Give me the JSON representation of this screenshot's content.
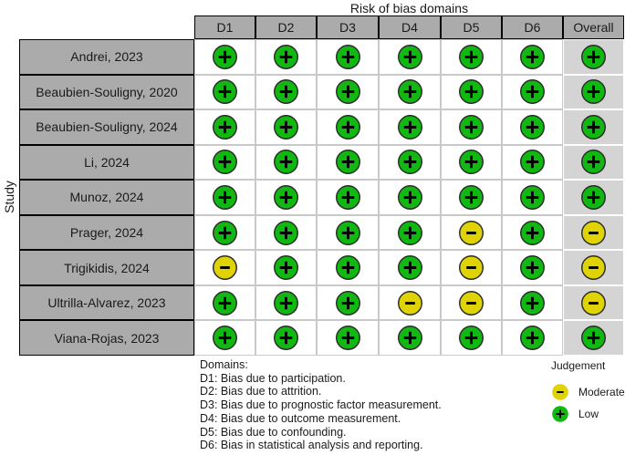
{
  "chart_data": {
    "type": "table",
    "title": "Risk of bias domains",
    "ylabel": "Study",
    "columns": [
      "D1",
      "D2",
      "D3",
      "D4",
      "D5",
      "D6",
      "Overall"
    ],
    "rows": [
      {
        "study": "Andrei, 2023",
        "judgements": [
          "low",
          "low",
          "low",
          "low",
          "low",
          "low",
          "low"
        ]
      },
      {
        "study": "Beaubien-Souligny, 2020",
        "judgements": [
          "low",
          "low",
          "low",
          "low",
          "low",
          "low",
          "low"
        ]
      },
      {
        "study": "Beaubien-Souligny, 2024",
        "judgements": [
          "low",
          "low",
          "low",
          "low",
          "low",
          "low",
          "low"
        ]
      },
      {
        "study": "Li, 2024",
        "judgements": [
          "low",
          "low",
          "low",
          "low",
          "low",
          "low",
          "low"
        ]
      },
      {
        "study": "Munoz, 2024",
        "judgements": [
          "low",
          "low",
          "low",
          "low",
          "low",
          "low",
          "low"
        ]
      },
      {
        "study": "Prager, 2024",
        "judgements": [
          "low",
          "low",
          "low",
          "low",
          "moderate",
          "low",
          "moderate"
        ]
      },
      {
        "study": "Trigikidis, 2024",
        "judgements": [
          "moderate",
          "low",
          "low",
          "low",
          "moderate",
          "low",
          "moderate"
        ]
      },
      {
        "study": "Ultrilla-Alvarez, 2023",
        "judgements": [
          "low",
          "low",
          "low",
          "moderate",
          "moderate",
          "low",
          "moderate"
        ]
      },
      {
        "study": "Viana-Rojas, 2023",
        "judgements": [
          "low",
          "low",
          "low",
          "low",
          "low",
          "low",
          "low"
        ]
      }
    ],
    "judgement_symbols": {
      "low": "+",
      "moderate": "-"
    },
    "judgement_colors": {
      "low": "#12b812",
      "moderate": "#e0d303"
    },
    "footnote": {
      "heading": "Domains:",
      "lines": [
        "D1: Bias due to participation.",
        "D2: Bias due to attrition.",
        "D3: Bias due to prognostic factor measurement.",
        "D4: Bias due to outcome measurement.",
        "D5: Bias due to confounding.",
        "D6: Bias in statistical analysis and reporting."
      ]
    },
    "legend": {
      "title": "Judgement",
      "items": [
        {
          "label": "Moderate",
          "judgement": "moderate"
        },
        {
          "label": "Low",
          "judgement": "low"
        }
      ]
    }
  },
  "colors": {
    "header_fill": "#ababab",
    "study_fill": "#ababab",
    "overall_fill": "#d4d4d4",
    "body_grid_line": "#c9c9c9",
    "table_border": "#000000",
    "circle_stroke": "#2a2a2a",
    "symbol": "#000000"
  }
}
